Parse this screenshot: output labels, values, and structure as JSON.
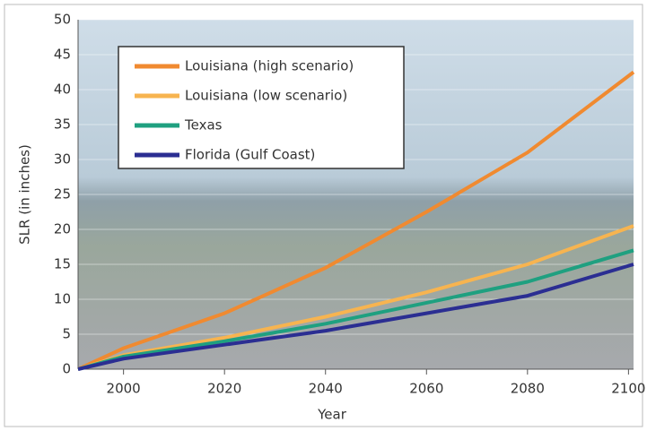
{
  "chart_data": {
    "type": "line",
    "x_label": "Year",
    "y_label": "SLR (in inches)",
    "x": [
      1991,
      2000,
      2020,
      2040,
      2060,
      2080,
      2101
    ],
    "series": [
      {
        "name": "Louisiana (high scenario)",
        "color": "#f08a30",
        "values": [
          0,
          3,
          8,
          14.5,
          22.5,
          31,
          42.5
        ]
      },
      {
        "name": "Louisiana (low scenario)",
        "color": "#f7b450",
        "values": [
          0,
          2,
          4.5,
          7.5,
          11,
          15,
          20.5
        ]
      },
      {
        "name": "Texas",
        "color": "#1fa080",
        "values": [
          0,
          1.8,
          4,
          6.5,
          9.5,
          12.5,
          17
        ]
      },
      {
        "name": "Florida (Gulf Coast)",
        "color": "#2b2e92",
        "values": [
          0,
          1.5,
          3.5,
          5.5,
          8,
          10.5,
          15
        ]
      }
    ],
    "xlim": [
      1991,
      2101
    ],
    "xticks": [
      2000,
      2020,
      2040,
      2060,
      2080,
      2100
    ],
    "ylim": [
      0,
      50
    ],
    "yticks": [
      0,
      5,
      10,
      15,
      20,
      25,
      30,
      35,
      40,
      45,
      50
    ],
    "grid": true,
    "legend": "upper-left"
  }
}
